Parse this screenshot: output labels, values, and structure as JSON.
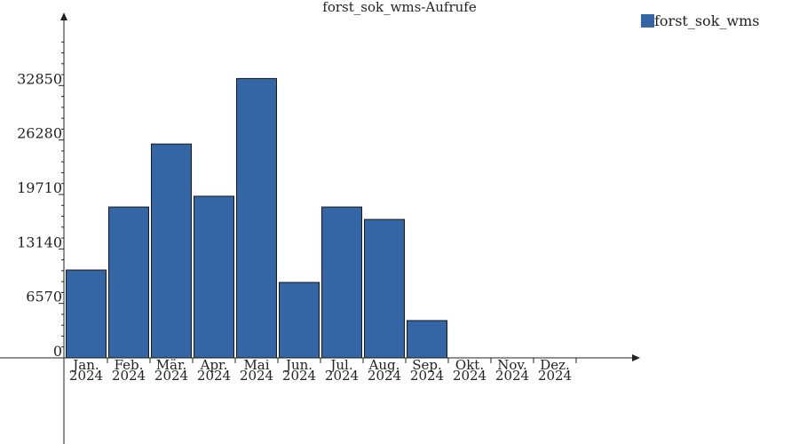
{
  "chart_data": {
    "type": "bar",
    "title": "forst_sok_wms-Aufrufe",
    "xlabel": "",
    "ylabel": "",
    "categories": [
      [
        "Jan.",
        "2024"
      ],
      [
        "Feb.",
        "2024"
      ],
      [
        "Mär.",
        "2024"
      ],
      [
        "Apr.",
        "2024"
      ],
      [
        "Mai",
        "2024"
      ],
      [
        "Jun.",
        "2024"
      ],
      [
        "Jul.",
        "2024"
      ],
      [
        "Aug.",
        "2024"
      ],
      [
        "Sep.",
        "2024"
      ],
      [
        "Okt.",
        "2024"
      ],
      [
        "Nov.",
        "2024"
      ],
      [
        "Dez.",
        "2024"
      ]
    ],
    "series": [
      {
        "name": "forst_sok_wms",
        "color": "#3465a4",
        "values": [
          10600,
          18200,
          25800,
          19500,
          33700,
          9100,
          18200,
          16700,
          4500,
          0,
          0,
          0
        ]
      }
    ],
    "yticks": [
      0,
      6570,
      13140,
      19710,
      26280,
      32850
    ],
    "ylim": [
      0,
      39420
    ],
    "legend_position": "top-right",
    "grid": false
  }
}
